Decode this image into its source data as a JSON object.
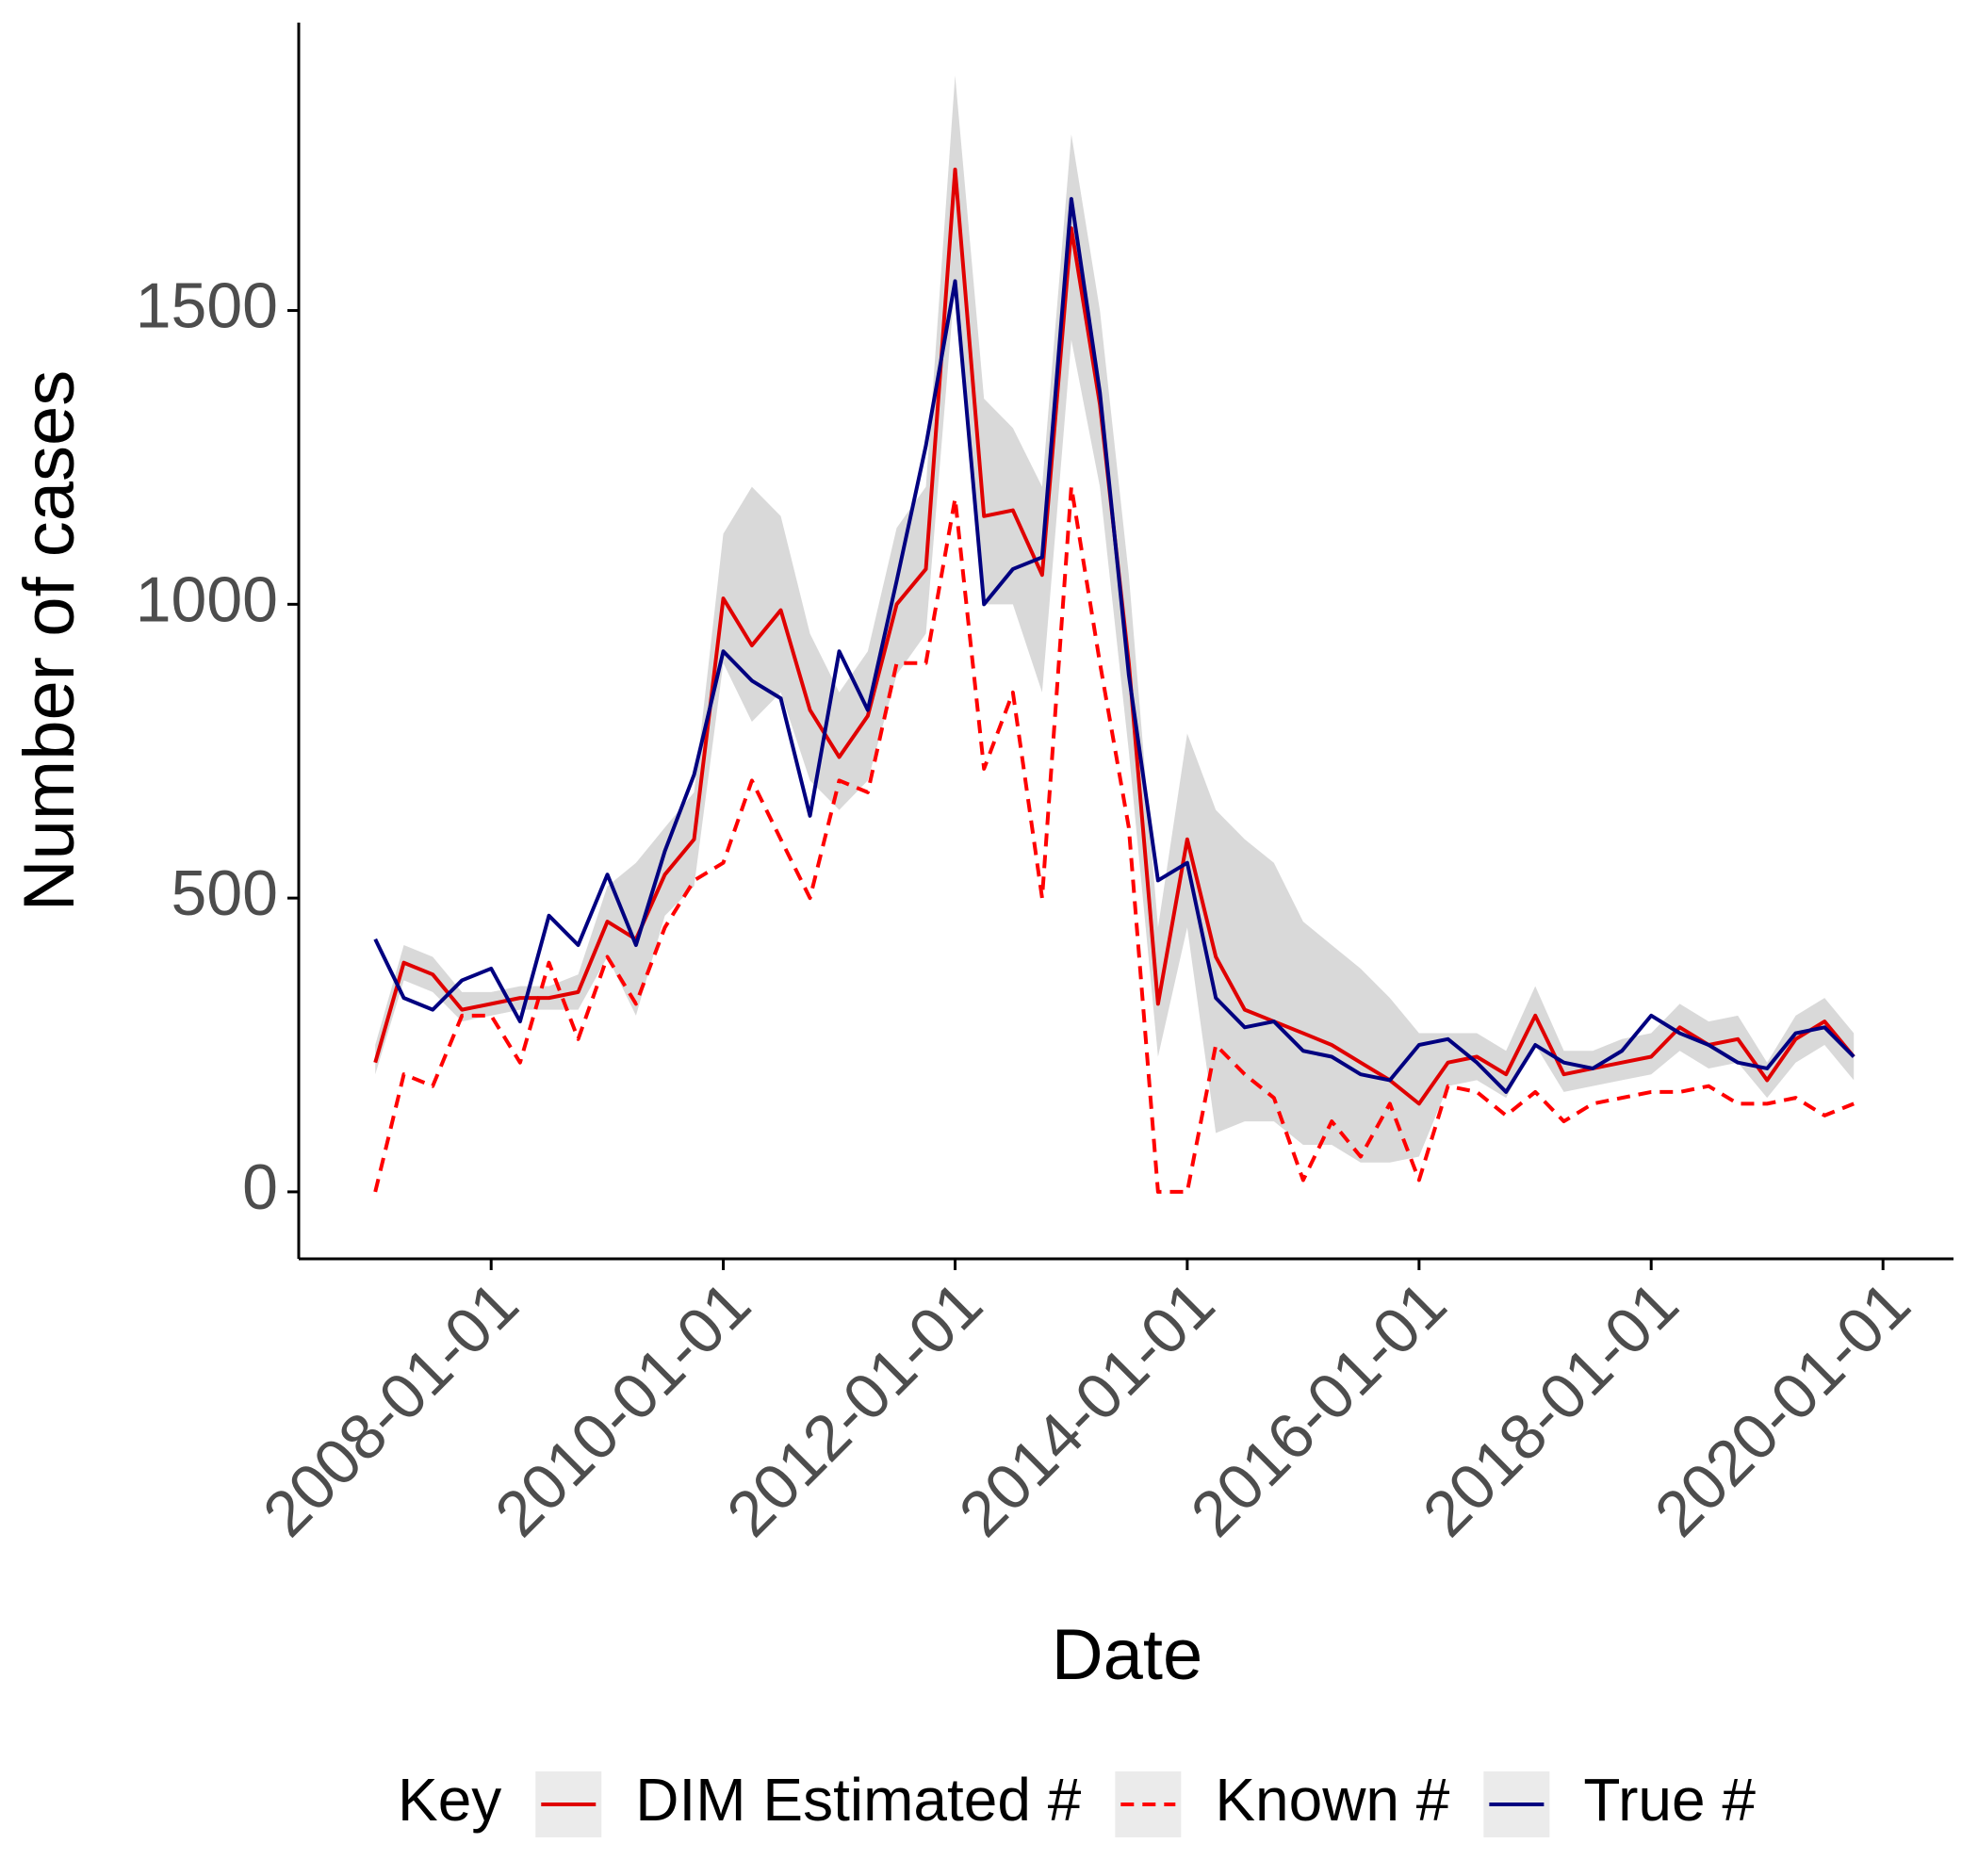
{
  "chart_data": {
    "type": "line",
    "xlabel": "Date",
    "ylabel": "Number of cases",
    "x": [
      "2007-01-01",
      "2007-04-01",
      "2007-07-01",
      "2007-10-01",
      "2008-01-01",
      "2008-04-01",
      "2008-07-01",
      "2008-10-01",
      "2009-01-01",
      "2009-04-01",
      "2009-07-01",
      "2009-10-01",
      "2010-01-01",
      "2010-04-01",
      "2010-07-01",
      "2010-10-01",
      "2011-01-01",
      "2011-04-01",
      "2011-07-01",
      "2011-10-01",
      "2012-01-01",
      "2012-04-01",
      "2012-07-01",
      "2012-10-01",
      "2013-01-01",
      "2013-04-01",
      "2013-07-01",
      "2013-10-01",
      "2014-01-01",
      "2014-04-01",
      "2014-07-01",
      "2014-10-01",
      "2015-01-01",
      "2015-04-01",
      "2015-07-01",
      "2015-10-01",
      "2016-01-01",
      "2016-04-01",
      "2016-07-01",
      "2016-10-01",
      "2017-01-01",
      "2017-04-01",
      "2017-07-01",
      "2017-10-01",
      "2018-01-01",
      "2018-04-01",
      "2018-07-01",
      "2018-10-01",
      "2019-01-01",
      "2019-04-01",
      "2019-07-01",
      "2019-10-01"
    ],
    "xlim": [
      "2006-05-05",
      "2020-08-10"
    ],
    "xticks": [
      "2008-01-01",
      "2010-01-01",
      "2012-01-01",
      "2014-01-01",
      "2016-01-01",
      "2018-01-01",
      "2020-01-01"
    ],
    "ylim": [
      -114,
      1990
    ],
    "yticks": [
      0,
      500,
      1000,
      1500
    ],
    "legend_title": "Key",
    "legend_position": "bottom",
    "band_color": "#d9d9d9",
    "series": [
      {
        "name": "DIM Estimated #",
        "color": "#e00000",
        "linestyle": "solid",
        "values": [
          220,
          390,
          370,
          310,
          320,
          330,
          330,
          340,
          460,
          430,
          540,
          600,
          1010,
          930,
          990,
          820,
          740,
          810,
          1000,
          1060,
          1740,
          1150,
          1160,
          1050,
          1640,
          1340,
          900,
          320,
          600,
          400,
          310,
          290,
          270,
          250,
          220,
          190,
          150,
          220,
          230,
          200,
          300,
          200,
          210,
          220,
          230,
          280,
          250,
          260,
          190,
          260,
          290,
          230
        ],
        "lower": [
          200,
          360,
          340,
          290,
          300,
          310,
          310,
          310,
          400,
          300,
          470,
          520,
          900,
          800,
          850,
          700,
          650,
          700,
          880,
          950,
          1550,
          1000,
          1000,
          850,
          1450,
          1200,
          750,
          230,
          450,
          100,
          120,
          120,
          80,
          80,
          50,
          50,
          60,
          180,
          190,
          160,
          250,
          170,
          180,
          190,
          200,
          240,
          210,
          220,
          160,
          220,
          250,
          190
        ],
        "upper": [
          250,
          420,
          400,
          340,
          340,
          350,
          350,
          370,
          520,
          560,
          620,
          680,
          1120,
          1200,
          1150,
          950,
          850,
          920,
          1130,
          1200,
          1900,
          1350,
          1300,
          1200,
          1800,
          1500,
          1050,
          450,
          780,
          650,
          600,
          560,
          460,
          420,
          380,
          330,
          270,
          270,
          270,
          240,
          350,
          240,
          240,
          260,
          270,
          320,
          290,
          300,
          220,
          300,
          330,
          270
        ]
      },
      {
        "name": "Known #",
        "color": "#ff0000",
        "linestyle": "dashed",
        "values": [
          0,
          200,
          180,
          300,
          300,
          220,
          390,
          260,
          400,
          320,
          450,
          530,
          560,
          700,
          600,
          500,
          700,
          680,
          900,
          900,
          1180,
          720,
          850,
          500,
          1200,
          900,
          620,
          0,
          0,
          250,
          200,
          160,
          20,
          120,
          60,
          150,
          20,
          180,
          170,
          130,
          170,
          120,
          150,
          160,
          170,
          170,
          180,
          150,
          150,
          160,
          130,
          150
        ]
      },
      {
        "name": "True #",
        "color": "#000080",
        "linestyle": "solid",
        "values": [
          430,
          330,
          310,
          360,
          380,
          290,
          470,
          420,
          540,
          420,
          580,
          710,
          920,
          870,
          840,
          640,
          920,
          820,
          1040,
          1270,
          1550,
          1000,
          1060,
          1080,
          1690,
          1360,
          880,
          530,
          560,
          330,
          280,
          290,
          240,
          230,
          200,
          190,
          250,
          260,
          220,
          170,
          250,
          220,
          210,
          240,
          300,
          270,
          250,
          220,
          210,
          270,
          280,
          230
        ]
      }
    ]
  }
}
